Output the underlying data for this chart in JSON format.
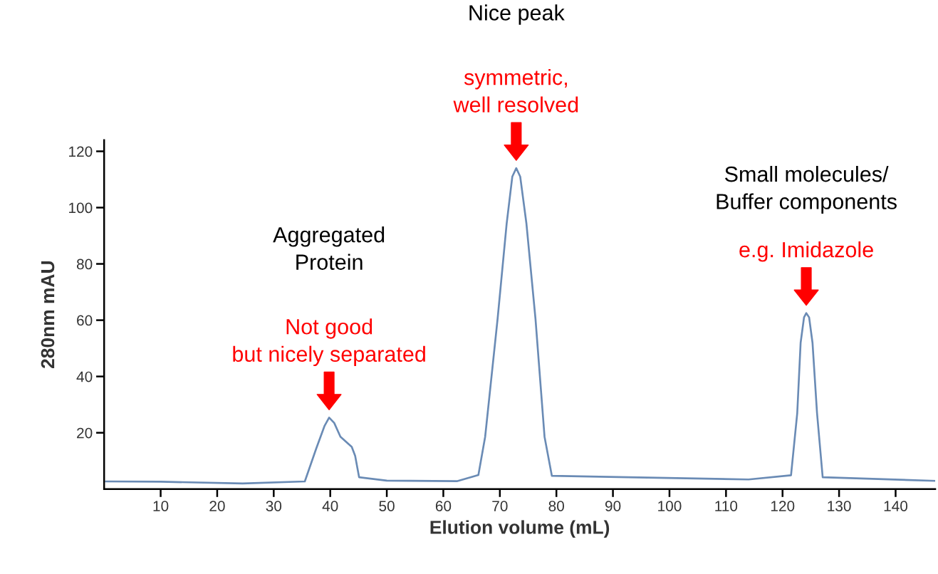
{
  "chart_data": {
    "type": "line",
    "xlabel": "Elution volume (mL)",
    "ylabel": "280nm mAU",
    "xlim": [
      0,
      147
    ],
    "ylim": [
      0,
      124
    ],
    "xticks": [
      10,
      20,
      30,
      40,
      50,
      60,
      70,
      80,
      90,
      100,
      110,
      120,
      130,
      140
    ],
    "yticks": [
      20,
      40,
      60,
      80,
      100,
      120
    ],
    "grid": false,
    "legend": false,
    "marker": "none",
    "line_style": "solid",
    "series": [
      {
        "color": "#6a8bb5",
        "x": [
          0.3,
          10,
          24.5,
          35.5,
          37.5,
          39.0,
          39.8,
          40.7,
          41.8,
          43.8,
          44.4,
          45.1,
          50,
          62.4,
          66.2,
          67.4,
          69.6,
          71.2,
          72.2,
          72.9,
          73.6,
          74.7,
          76.3,
          77.9,
          79.2,
          92.7,
          114,
          121.5,
          122.6,
          123.2,
          123.8,
          124.2,
          124.7,
          125.3,
          126.1,
          127.1,
          147
        ],
        "values": [
          2.7,
          2.6,
          2.0,
          2.7,
          14.3,
          22.5,
          25.4,
          23.5,
          18.6,
          15.0,
          11.8,
          4.2,
          3.0,
          2.8,
          5.0,
          18.6,
          60.5,
          94.3,
          111,
          114,
          111,
          94.3,
          60.5,
          18.6,
          4.7,
          4.2,
          3.4,
          4.9,
          27,
          52,
          61,
          62.5,
          61,
          52,
          27,
          4.2,
          2.9
        ]
      }
    ],
    "annotations": [
      "Aggregated\nProtein",
      {
        "text": "Not good\nbut nicely separated",
        "x": 39.8,
        "y": 25.4
      },
      "Nice peak",
      {
        "text": "symmetric,\nwell resolved",
        "x": 72.9,
        "y": 114
      },
      "Small molecules/\nBuffer components",
      {
        "text": "e.g. Imidazole",
        "x": 124.2,
        "y": 62.5
      }
    ]
  }
}
